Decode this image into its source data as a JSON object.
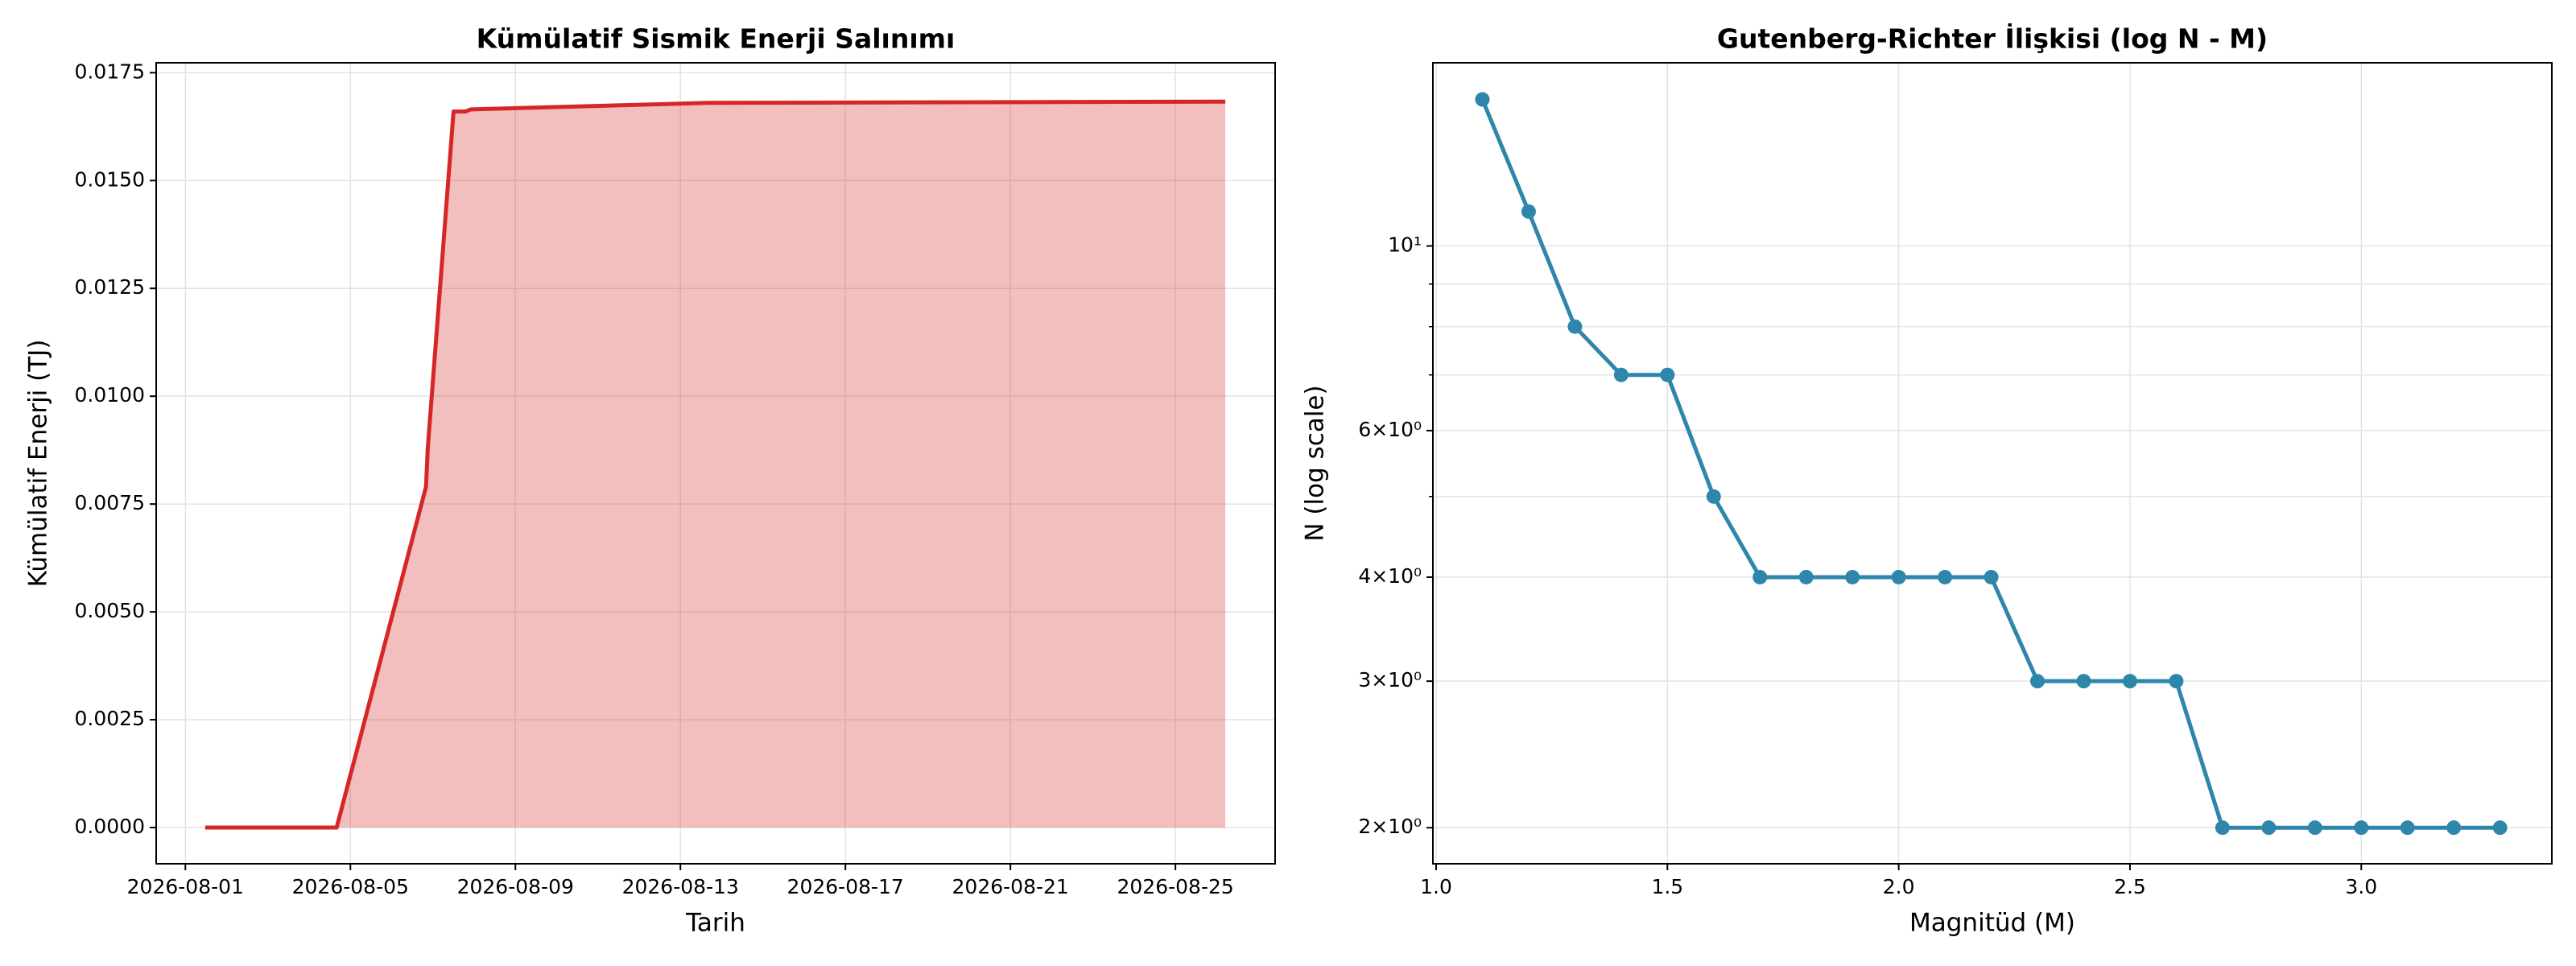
{
  "chart_data": [
    {
      "type": "line",
      "title": "Kümülatif Sismik Enerji Salınımı",
      "xlabel": "Tarih",
      "ylabel": "Kümülatif Enerji (TJ)",
      "x": [
        "2026-08-01T11:30",
        "2026-08-04T16:00",
        "2026-08-06T20:00",
        "2026-08-06T21:00",
        "2026-08-07T12:00",
        "2026-08-07T19:00",
        "2026-08-07T22:00",
        "2026-08-13T17:00",
        "2026-08-26T05:00"
      ],
      "values": [
        0,
        0,
        0.0079,
        0.0088,
        0.0166,
        0.0166,
        0.01665,
        0.0168,
        0.01683
      ],
      "color": "#d62728",
      "fill": true,
      "grid": true,
      "xlim": [
        "2026-07-31T07:00",
        "2026-08-27T10:00"
      ],
      "xticks": [
        "2026-08-01",
        "2026-08-05",
        "2026-08-09",
        "2026-08-13",
        "2026-08-17",
        "2026-08-21",
        "2026-08-25"
      ],
      "ylim": [
        -0.00084,
        0.01773
      ],
      "yticks": [
        {
          "value": 0,
          "label": "0.0000"
        },
        0.0025,
        {
          "value": 0.005,
          "label": "0.0050"
        },
        0.0075,
        {
          "value": 0.01,
          "label": "0.0100"
        },
        0.0125,
        {
          "value": 0.015,
          "label": "0.0150"
        },
        0.0175
      ]
    },
    {
      "type": "line",
      "title": "Gutenberg-Richter İlişkisi (log N - M)",
      "xlabel": "Magnitüd (M)",
      "ylabel": "N (log scale)",
      "x": [
        1.1,
        1.2,
        1.3,
        1.4,
        1.5,
        1.6,
        1.7,
        1.8,
        1.9,
        2.0,
        2.1,
        2.2,
        2.3,
        2.4,
        2.5,
        2.6,
        2.7,
        2.8,
        2.9,
        3.0,
        3.1,
        3.2,
        3.3
      ],
      "values": [
        15,
        11,
        8,
        7,
        7,
        5,
        4,
        4,
        4,
        4,
        4,
        4,
        3,
        3,
        3,
        3,
        2,
        2,
        2,
        2,
        2,
        2,
        2
      ],
      "color": "#2e86ab",
      "markers": true,
      "log_y": true,
      "grid": true,
      "xlim": [
        0.993,
        3.412
      ],
      "xticks": [
        {
          "value": 1.0,
          "label": "1.0"
        },
        1.5,
        {
          "value": 2.0,
          "label": "2.0"
        },
        2.5,
        {
          "value": 3.0,
          "label": "3.0"
        }
      ],
      "ylim": [
        1.81,
        16.6
      ],
      "yticks": [
        {
          "value": 10,
          "label": "10¹"
        },
        {
          "value": 6,
          "label": "6×10⁰"
        },
        {
          "value": 4,
          "label": "4×10⁰"
        },
        {
          "value": 3,
          "label": "3×10⁰"
        },
        {
          "value": 2,
          "label": "2×10⁰"
        }
      ],
      "yminor": [
        5,
        7,
        8,
        9
      ]
    }
  ]
}
